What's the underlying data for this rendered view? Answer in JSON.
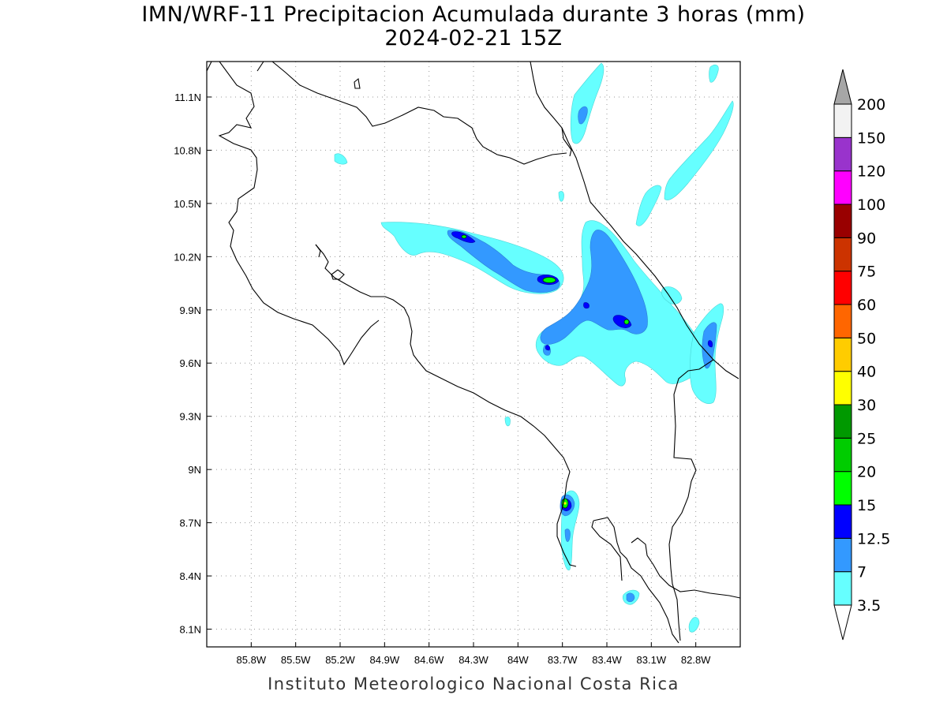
{
  "title": {
    "line1": "IMN/WRF-11 Precipitacion Acumulada durante 3 horas (mm)",
    "line2": "2024-02-21 15Z"
  },
  "credit": "Instituto Meteorologico Nacional Costa Rica",
  "axes": {
    "lon_labels": [
      "85.8W",
      "85.5W",
      "85.2W",
      "84.9W",
      "84.6W",
      "84.3W",
      "84W",
      "83.7W",
      "83.4W",
      "83.1W",
      "82.8W"
    ],
    "lat_labels": [
      "11.1N",
      "10.8N",
      "10.5N",
      "10.2N",
      "9.9N",
      "9.6N",
      "9.3N",
      "9N",
      "8.7N",
      "8.4N",
      "8.1N"
    ],
    "lon_values": [
      -85.8,
      -85.5,
      -85.2,
      -84.9,
      -84.6,
      -84.3,
      -84.0,
      -83.7,
      -83.4,
      -83.1,
      -82.8
    ],
    "lat_values": [
      11.1,
      10.8,
      10.5,
      10.2,
      9.9,
      9.6,
      9.3,
      9.0,
      8.7,
      8.4,
      8.1
    ],
    "lon_range": [
      -86.1,
      -82.5
    ],
    "lat_range": [
      8.0,
      11.3
    ],
    "grid": "dotted"
  },
  "colorbar": {
    "levels": [
      "3.5",
      "7",
      "12.5",
      "15",
      "20",
      "25",
      "30",
      "40",
      "50",
      "60",
      "75",
      "90",
      "100",
      "120",
      "150",
      "200"
    ],
    "colors": [
      "#66ffff",
      "#3399ff",
      "#0000ff",
      "#00ff00",
      "#00cc00",
      "#009900",
      "#ffff00",
      "#ffcc00",
      "#ff6600",
      "#ff0000",
      "#cc3300",
      "#990000",
      "#ff00ff",
      "#9933cc",
      "#f2f2f2"
    ],
    "over_color": "#a6a6a6",
    "under_color": "#ffffff"
  },
  "colors": {
    "light": "#66ffff",
    "medium": "#3399ff",
    "heavy": "#0000ff",
    "core": "#00ff00"
  }
}
